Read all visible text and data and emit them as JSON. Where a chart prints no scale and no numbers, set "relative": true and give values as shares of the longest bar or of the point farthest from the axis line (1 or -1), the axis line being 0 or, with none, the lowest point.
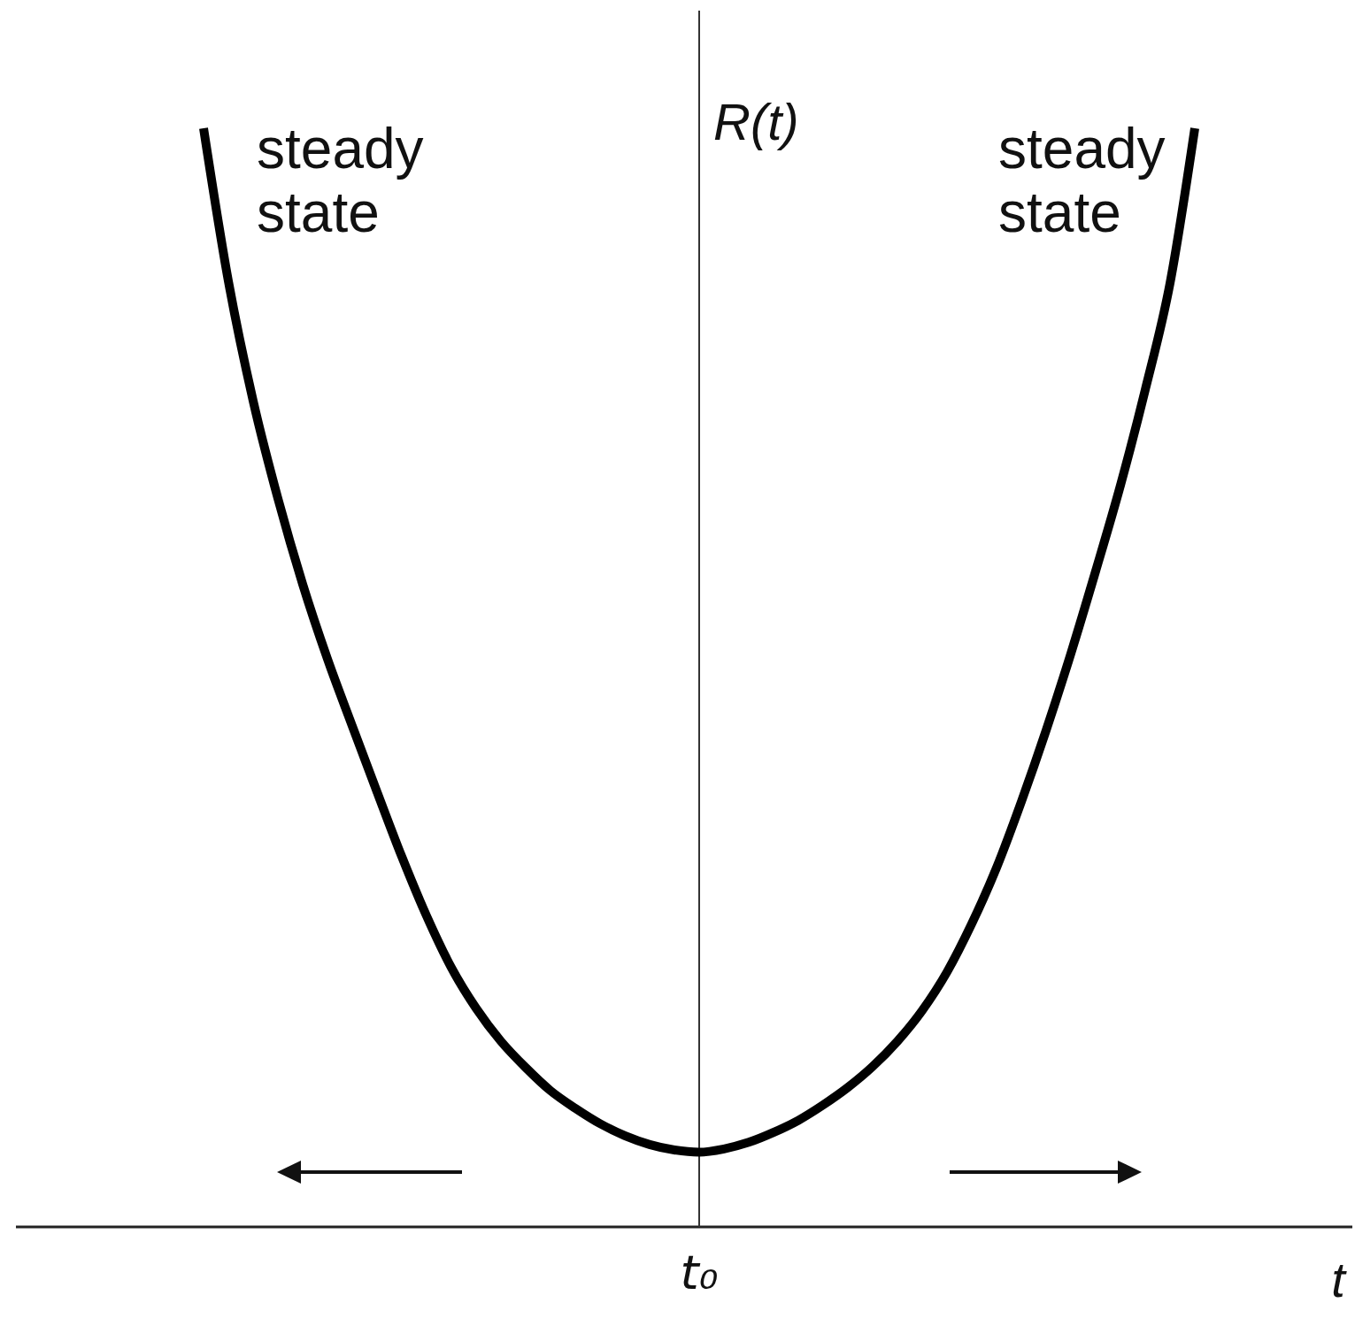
{
  "chart_data": {
    "type": "line",
    "relative": true,
    "xlabel": "t",
    "ylabel": "R(t)",
    "categories": [
      null,
      null,
      null,
      null,
      null,
      null,
      null,
      null,
      null,
      null,
      null,
      null,
      null,
      null,
      null,
      null,
      null,
      null,
      null,
      null,
      null,
      null,
      null,
      null,
      null,
      null,
      null,
      null,
      null,
      null,
      null,
      null,
      null,
      null,
      null,
      null,
      null,
      null,
      null,
      null,
      null
    ],
    "series": [
      {
        "color": "#000000",
        "values": [
          1,
          0.861,
          0.752,
          0.663,
          0.585,
          0.517,
          0.456,
          0.396,
          0.337,
          0.283,
          0.236,
          0.199,
          0.169,
          0.145,
          0.124,
          0.108,
          0.094,
          0.083,
          0.075,
          0.07,
          0.068,
          0.071,
          0.077,
          0.086,
          0.097,
          0.111,
          0.127,
          0.146,
          0.169,
          0.197,
          0.232,
          0.276,
          0.327,
          0.387,
          0.452,
          0.522,
          0.597,
          0.675,
          0.762,
          0.859,
          1
        ]
      }
    ],
    "annotations": [
      "steady state",
      "steady state",
      "t₀"
    ]
  }
}
